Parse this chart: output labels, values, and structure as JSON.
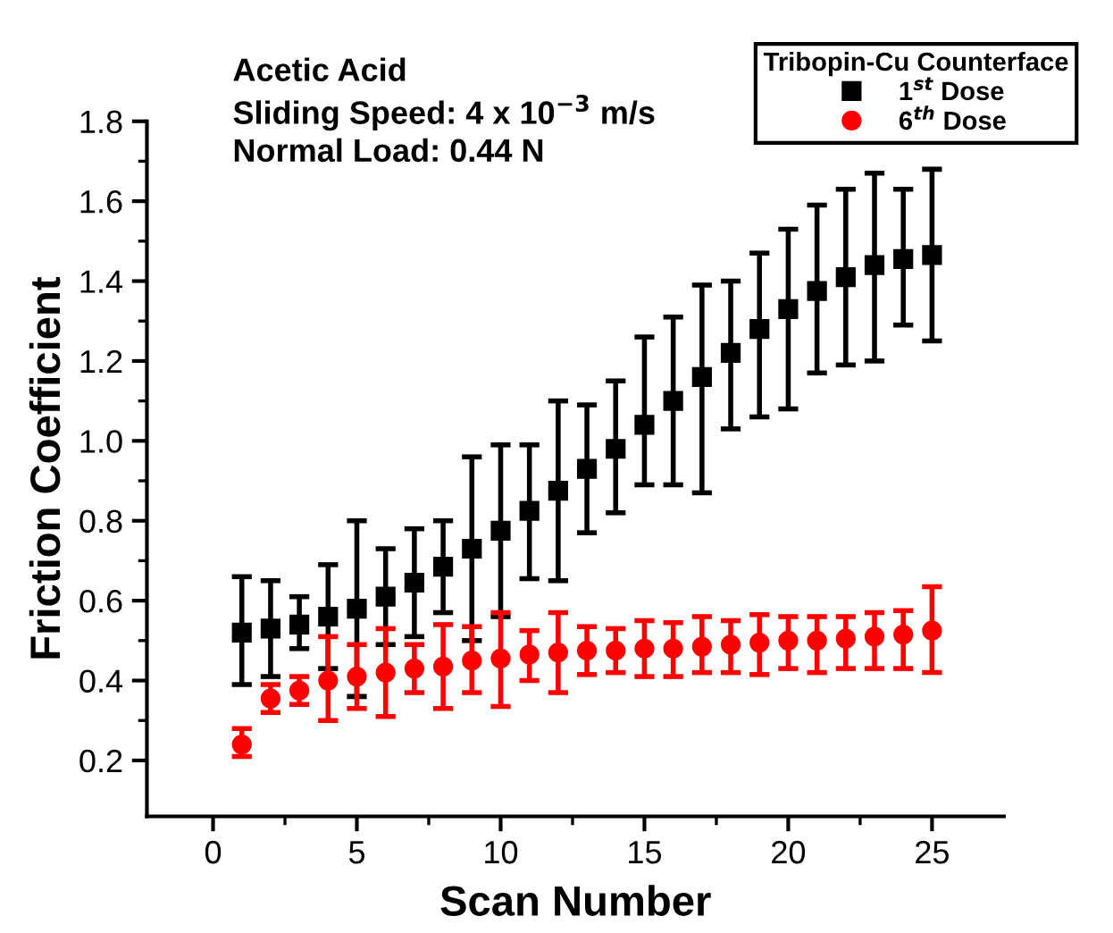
{
  "chart_data": {
    "type": "scatter",
    "xlabel": "Scan Number",
    "ylabel": "Friction Coefficient",
    "legend_title": "Tribopin-Cu Counterface",
    "annotations": [
      "Acetic Acid",
      "Sliding Speed: 4 x 10$^{−3}$ m/s",
      "Normal Load: 0.44 N"
    ],
    "x": [
      1,
      2,
      3,
      4,
      5,
      6,
      7,
      8,
      9,
      10,
      11,
      12,
      13,
      14,
      15,
      16,
      17,
      18,
      19,
      20,
      21,
      22,
      23,
      24,
      25
    ],
    "series": [
      {
        "name": "1$^{st}$ Dose",
        "color": "#000000",
        "marker": "square",
        "values": [
          0.52,
          0.53,
          0.54,
          0.56,
          0.58,
          0.61,
          0.645,
          0.685,
          0.73,
          0.775,
          0.825,
          0.875,
          0.93,
          0.98,
          1.04,
          1.1,
          1.16,
          1.22,
          1.28,
          1.33,
          1.375,
          1.41,
          1.44,
          1.455,
          1.465
        ],
        "errors": [
          [
            0.39,
            0.66
          ],
          [
            0.41,
            0.65
          ],
          [
            0.48,
            0.61
          ],
          [
            0.43,
            0.69
          ],
          [
            0.36,
            0.8
          ],
          [
            0.49,
            0.73
          ],
          [
            0.51,
            0.78
          ],
          [
            0.57,
            0.8
          ],
          [
            0.5,
            0.96
          ],
          [
            0.56,
            0.99
          ],
          [
            0.655,
            0.99
          ],
          [
            0.65,
            1.1
          ],
          [
            0.77,
            1.09
          ],
          [
            0.82,
            1.15
          ],
          [
            0.89,
            1.26
          ],
          [
            0.89,
            1.31
          ],
          [
            0.87,
            1.39
          ],
          [
            1.03,
            1.4
          ],
          [
            1.06,
            1.47
          ],
          [
            1.08,
            1.53
          ],
          [
            1.17,
            1.59
          ],
          [
            1.19,
            1.63
          ],
          [
            1.2,
            1.67
          ],
          [
            1.29,
            1.63
          ],
          [
            1.25,
            1.68
          ]
        ]
      },
      {
        "name": "6$^{th}$ Dose",
        "color": "#ff0000",
        "marker": "circle",
        "values": [
          0.24,
          0.355,
          0.375,
          0.4,
          0.41,
          0.42,
          0.43,
          0.435,
          0.45,
          0.455,
          0.465,
          0.47,
          0.475,
          0.475,
          0.48,
          0.48,
          0.485,
          0.49,
          0.495,
          0.5,
          0.5,
          0.505,
          0.51,
          0.515,
          0.525
        ],
        "errors": [
          [
            0.21,
            0.28
          ],
          [
            0.32,
            0.39
          ],
          [
            0.34,
            0.41
          ],
          [
            0.3,
            0.51
          ],
          [
            0.33,
            0.49
          ],
          [
            0.31,
            0.53
          ],
          [
            0.37,
            0.49
          ],
          [
            0.33,
            0.54
          ],
          [
            0.37,
            0.535
          ],
          [
            0.335,
            0.57
          ],
          [
            0.4,
            0.525
          ],
          [
            0.37,
            0.57
          ],
          [
            0.415,
            0.535
          ],
          [
            0.42,
            0.53
          ],
          [
            0.41,
            0.55
          ],
          [
            0.41,
            0.545
          ],
          [
            0.42,
            0.56
          ],
          [
            0.42,
            0.55
          ],
          [
            0.415,
            0.565
          ],
          [
            0.43,
            0.56
          ],
          [
            0.42,
            0.56
          ],
          [
            0.43,
            0.56
          ],
          [
            0.43,
            0.57
          ],
          [
            0.43,
            0.575
          ],
          [
            0.42,
            0.635
          ]
        ]
      }
    ],
    "xlim": [
      -2.3,
      27.5
    ],
    "xticks": [
      0,
      5,
      10,
      15,
      20,
      25
    ],
    "ylim": [
      0.06,
      1.8
    ],
    "yticks": [
      0.2,
      0.4,
      0.6,
      0.8,
      {
        "value": 1,
        "label": "1.0"
      },
      1.2,
      1.4,
      1.6,
      1.8
    ],
    "grid": false,
    "legend": "top right"
  }
}
